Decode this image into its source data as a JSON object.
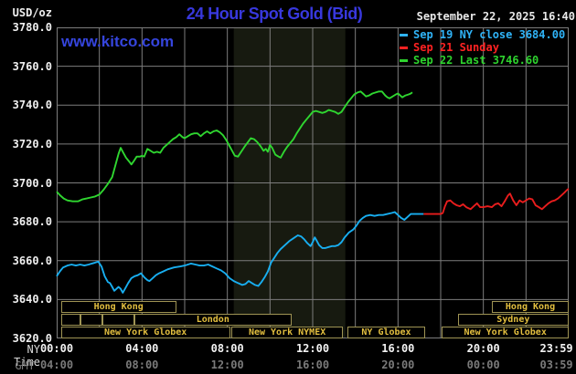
{
  "header": {
    "units": "USD/oz",
    "title": "24 Hour Spot Gold (Bid)",
    "timestamp": "September 22, 2025 16:40",
    "watermark": "www.kitco.com"
  },
  "legend": [
    {
      "id": "sep19",
      "label": "Sep 19 NY close 3684.00",
      "color": "#2fb3f7"
    },
    {
      "id": "sep21",
      "label": "Sep 21 Sunday",
      "color": "#ff2222"
    },
    {
      "id": "sep22",
      "label": "Sep 22 Last 3746.60",
      "color": "#2ed32e"
    }
  ],
  "axis": {
    "ny_label": "NY Time",
    "gmt_label": "GMT"
  },
  "chart_data": {
    "type": "line",
    "title": "24 Hour Spot Gold (Bid)",
    "ylabel": "USD/oz",
    "ylim": [
      3620,
      3780
    ],
    "xlim_hours": [
      0,
      24
    ],
    "grid": true,
    "legend_position": "top-right",
    "y_ticks": [
      3780,
      3760,
      3740,
      3720,
      3700,
      3680,
      3660,
      3640,
      3620
    ],
    "grid_values": [
      3760,
      3740,
      3720,
      3700,
      3680,
      3660,
      3640
    ],
    "grid_hours": [
      2,
      4,
      6,
      8,
      10,
      12,
      14,
      16,
      18,
      20,
      22
    ],
    "x_ticks": [
      {
        "hour": 0,
        "ny": "00:00",
        "gmt": "04:00"
      },
      {
        "hour": 4,
        "ny": "04:00",
        "gmt": "08:00"
      },
      {
        "hour": 8,
        "ny": "08:00",
        "gmt": "12:00"
      },
      {
        "hour": 12,
        "ny": "12:00",
        "gmt": "16:00"
      },
      {
        "hour": 16,
        "ny": "16:00",
        "gmt": "20:00"
      },
      {
        "hour": 20,
        "ny": "20:00",
        "gmt": "00:00"
      },
      {
        "hour": 23.983,
        "ny": "23:59",
        "gmt": "03:59"
      }
    ],
    "colors": {
      "grid": "#7d7d7d",
      "band": "#171a10",
      "session_border": "#9f9454",
      "session_text": "#e3bf3f"
    },
    "nymex_shaded_band_hours": [
      8.3,
      13.53
    ],
    "close_value": 3684.0,
    "last_value": 3746.6,
    "series": [
      {
        "id": "sep19",
        "name": "Sep 19 NY close 3684.00",
        "color": "#18aef0",
        "points": [
          [
            0.0,
            3652
          ],
          [
            0.15,
            3654.5
          ],
          [
            0.3,
            3656.5
          ],
          [
            0.5,
            3657.5
          ],
          [
            0.7,
            3658
          ],
          [
            0.9,
            3657.5
          ],
          [
            1.1,
            3658
          ],
          [
            1.3,
            3657.5
          ],
          [
            1.5,
            3658
          ],
          [
            1.65,
            3658.5
          ],
          [
            1.8,
            3659
          ],
          [
            1.95,
            3659.5
          ],
          [
            2.1,
            3657
          ],
          [
            2.25,
            3652
          ],
          [
            2.4,
            3649
          ],
          [
            2.5,
            3648.5
          ],
          [
            2.6,
            3646.5
          ],
          [
            2.7,
            3644.5
          ],
          [
            2.8,
            3645.5
          ],
          [
            2.9,
            3646.5
          ],
          [
            3.0,
            3645.5
          ],
          [
            3.1,
            3643.5
          ],
          [
            3.2,
            3645.5
          ],
          [
            3.35,
            3648.5
          ],
          [
            3.5,
            3651
          ],
          [
            3.65,
            3652
          ],
          [
            3.8,
            3652.5
          ],
          [
            3.95,
            3653.5
          ],
          [
            4.1,
            3651.5
          ],
          [
            4.25,
            3650
          ],
          [
            4.35,
            3649.5
          ],
          [
            4.5,
            3651
          ],
          [
            4.65,
            3652.5
          ],
          [
            4.8,
            3653.5
          ],
          [
            5.0,
            3654.5
          ],
          [
            5.2,
            3655.5
          ],
          [
            5.5,
            3656.5
          ],
          [
            5.8,
            3657
          ],
          [
            6.0,
            3657.5
          ],
          [
            6.3,
            3658.5
          ],
          [
            6.5,
            3658
          ],
          [
            6.7,
            3657.5
          ],
          [
            6.9,
            3657.5
          ],
          [
            7.1,
            3658
          ],
          [
            7.3,
            3657
          ],
          [
            7.5,
            3656
          ],
          [
            7.7,
            3655
          ],
          [
            7.9,
            3653.5
          ],
          [
            8.1,
            3651
          ],
          [
            8.3,
            3649.5
          ],
          [
            8.5,
            3648.5
          ],
          [
            8.7,
            3647.5
          ],
          [
            8.85,
            3648
          ],
          [
            9.0,
            3649.5
          ],
          [
            9.15,
            3648.5
          ],
          [
            9.3,
            3647.5
          ],
          [
            9.45,
            3647
          ],
          [
            9.6,
            3649
          ],
          [
            9.75,
            3651.5
          ],
          [
            9.9,
            3654.5
          ],
          [
            10.05,
            3659
          ],
          [
            10.2,
            3661.5
          ],
          [
            10.35,
            3664
          ],
          [
            10.5,
            3666
          ],
          [
            10.7,
            3668
          ],
          [
            10.9,
            3670
          ],
          [
            11.1,
            3671.5
          ],
          [
            11.3,
            3673
          ],
          [
            11.45,
            3672.5
          ],
          [
            11.6,
            3671
          ],
          [
            11.75,
            3669
          ],
          [
            11.9,
            3667.5
          ],
          [
            12.0,
            3669.5
          ],
          [
            12.1,
            3672
          ],
          [
            12.2,
            3670
          ],
          [
            12.3,
            3668
          ],
          [
            12.45,
            3666.5
          ],
          [
            12.6,
            3666.5
          ],
          [
            12.75,
            3667
          ],
          [
            12.9,
            3667.5
          ],
          [
            13.05,
            3667.5
          ],
          [
            13.2,
            3668
          ],
          [
            13.35,
            3669.5
          ],
          [
            13.5,
            3672
          ],
          [
            13.7,
            3674.5
          ],
          [
            13.9,
            3676
          ],
          [
            14.05,
            3678
          ],
          [
            14.2,
            3680.5
          ],
          [
            14.35,
            3682
          ],
          [
            14.5,
            3683
          ],
          [
            14.7,
            3683.5
          ],
          [
            14.9,
            3683
          ],
          [
            15.1,
            3683.5
          ],
          [
            15.3,
            3683.5
          ],
          [
            15.5,
            3684
          ],
          [
            15.7,
            3684.5
          ],
          [
            15.85,
            3685
          ],
          [
            16.0,
            3683.5
          ],
          [
            16.15,
            3682
          ],
          [
            16.3,
            3681
          ],
          [
            16.45,
            3682.5
          ],
          [
            16.6,
            3684
          ],
          [
            16.8,
            3684
          ],
          [
            17.0,
            3684
          ],
          [
            17.2,
            3684
          ]
        ]
      },
      {
        "id": "sep21",
        "name": "Sep 21 Sunday",
        "color": "#e81d1d",
        "points": [
          [
            17.2,
            3684
          ],
          [
            17.5,
            3684
          ],
          [
            17.8,
            3684
          ],
          [
            18.0,
            3684
          ],
          [
            18.1,
            3684.5
          ],
          [
            18.2,
            3688
          ],
          [
            18.3,
            3690.5
          ],
          [
            18.45,
            3691
          ],
          [
            18.6,
            3689.5
          ],
          [
            18.75,
            3688.5
          ],
          [
            18.9,
            3688
          ],
          [
            19.05,
            3689
          ],
          [
            19.2,
            3687.5
          ],
          [
            19.4,
            3686.5
          ],
          [
            19.55,
            3688
          ],
          [
            19.7,
            3689.5
          ],
          [
            19.85,
            3687.5
          ],
          [
            20.0,
            3687.5
          ],
          [
            20.2,
            3688
          ],
          [
            20.4,
            3687.5
          ],
          [
            20.55,
            3689
          ],
          [
            20.7,
            3689.5
          ],
          [
            20.85,
            3688
          ],
          [
            21.0,
            3690.5
          ],
          [
            21.15,
            3693.5
          ],
          [
            21.25,
            3694.5
          ],
          [
            21.4,
            3691
          ],
          [
            21.55,
            3688.5
          ],
          [
            21.7,
            3691
          ],
          [
            21.85,
            3690
          ],
          [
            22.0,
            3691
          ],
          [
            22.15,
            3692
          ],
          [
            22.3,
            3691.5
          ],
          [
            22.45,
            3688.5
          ],
          [
            22.6,
            3687.5
          ],
          [
            22.75,
            3686.5
          ],
          [
            22.9,
            3688
          ],
          [
            23.05,
            3689.5
          ],
          [
            23.2,
            3690.5
          ],
          [
            23.35,
            3691
          ],
          [
            23.5,
            3692
          ],
          [
            23.65,
            3693.5
          ],
          [
            23.8,
            3695
          ],
          [
            23.93,
            3696.5
          ],
          [
            24.0,
            3697
          ]
        ]
      },
      {
        "id": "sep22",
        "name": "Sep 22 Last 3746.60",
        "color": "#2fd630",
        "points": [
          [
            0.0,
            3695.5
          ],
          [
            0.17,
            3693.5
          ],
          [
            0.33,
            3692
          ],
          [
            0.5,
            3691
          ],
          [
            0.75,
            3690.5
          ],
          [
            1.0,
            3690.5
          ],
          [
            1.2,
            3691.5
          ],
          [
            1.4,
            3692
          ],
          [
            1.6,
            3692.5
          ],
          [
            1.8,
            3693
          ],
          [
            2.0,
            3694
          ],
          [
            2.2,
            3696.5
          ],
          [
            2.4,
            3699.5
          ],
          [
            2.6,
            3703
          ],
          [
            2.75,
            3709
          ],
          [
            2.9,
            3715
          ],
          [
            3.0,
            3718
          ],
          [
            3.1,
            3716
          ],
          [
            3.25,
            3713
          ],
          [
            3.4,
            3711
          ],
          [
            3.5,
            3709.5
          ],
          [
            3.6,
            3711
          ],
          [
            3.75,
            3713.5
          ],
          [
            3.9,
            3713.5
          ],
          [
            4.0,
            3714
          ],
          [
            4.1,
            3713.5
          ],
          [
            4.25,
            3717.5
          ],
          [
            4.4,
            3716.5
          ],
          [
            4.55,
            3715.5
          ],
          [
            4.7,
            3716
          ],
          [
            4.85,
            3715.5
          ],
          [
            5.0,
            3718
          ],
          [
            5.15,
            3719.5
          ],
          [
            5.3,
            3721
          ],
          [
            5.45,
            3722.5
          ],
          [
            5.6,
            3723.5
          ],
          [
            5.75,
            3725
          ],
          [
            5.9,
            3723.5
          ],
          [
            6.0,
            3723
          ],
          [
            6.15,
            3724
          ],
          [
            6.3,
            3725
          ],
          [
            6.45,
            3725.5
          ],
          [
            6.6,
            3725.5
          ],
          [
            6.75,
            3724
          ],
          [
            6.9,
            3725.5
          ],
          [
            7.05,
            3726.5
          ],
          [
            7.2,
            3725.5
          ],
          [
            7.35,
            3726.5
          ],
          [
            7.5,
            3727
          ],
          [
            7.65,
            3726
          ],
          [
            7.8,
            3724.5
          ],
          [
            7.95,
            3722
          ],
          [
            8.1,
            3719
          ],
          [
            8.25,
            3716
          ],
          [
            8.35,
            3714
          ],
          [
            8.5,
            3713.5
          ],
          [
            8.65,
            3716
          ],
          [
            8.8,
            3718.5
          ],
          [
            9.0,
            3721.5
          ],
          [
            9.1,
            3723
          ],
          [
            9.25,
            3722.5
          ],
          [
            9.4,
            3721
          ],
          [
            9.55,
            3719
          ],
          [
            9.7,
            3716.5
          ],
          [
            9.8,
            3717.5
          ],
          [
            9.9,
            3716
          ],
          [
            10.0,
            3719.5
          ],
          [
            10.1,
            3718
          ],
          [
            10.25,
            3714.5
          ],
          [
            10.4,
            3713.5
          ],
          [
            10.5,
            3713
          ],
          [
            10.65,
            3716
          ],
          [
            10.8,
            3718.5
          ],
          [
            10.95,
            3720.5
          ],
          [
            11.1,
            3722.5
          ],
          [
            11.25,
            3725.5
          ],
          [
            11.4,
            3728
          ],
          [
            11.55,
            3730.5
          ],
          [
            11.7,
            3732.5
          ],
          [
            11.85,
            3734.5
          ],
          [
            12.0,
            3736.5
          ],
          [
            12.15,
            3737
          ],
          [
            12.3,
            3736.5
          ],
          [
            12.45,
            3736
          ],
          [
            12.6,
            3736.5
          ],
          [
            12.75,
            3737.5
          ],
          [
            12.9,
            3737
          ],
          [
            13.05,
            3736.5
          ],
          [
            13.2,
            3735.5
          ],
          [
            13.35,
            3736.5
          ],
          [
            13.5,
            3739
          ],
          [
            13.65,
            3741.5
          ],
          [
            13.8,
            3743.5
          ],
          [
            13.95,
            3745.5
          ],
          [
            14.1,
            3746.5
          ],
          [
            14.25,
            3747
          ],
          [
            14.4,
            3745.5
          ],
          [
            14.5,
            3744.5
          ],
          [
            14.65,
            3745
          ],
          [
            14.8,
            3746
          ],
          [
            14.95,
            3746.5
          ],
          [
            15.1,
            3747
          ],
          [
            15.25,
            3747
          ],
          [
            15.4,
            3745
          ],
          [
            15.5,
            3744
          ],
          [
            15.6,
            3743.5
          ],
          [
            15.75,
            3744.5
          ],
          [
            15.9,
            3745.5
          ],
          [
            16.0,
            3746
          ],
          [
            16.1,
            3745
          ],
          [
            16.2,
            3744
          ],
          [
            16.35,
            3745
          ],
          [
            16.5,
            3745.5
          ],
          [
            16.6,
            3746
          ],
          [
            16.67,
            3746.6
          ]
        ]
      }
    ],
    "sessions": {
      "rows": [
        [
          {
            "label": "Hong Kong",
            "t0": 0.2,
            "t1": 5.6
          },
          {
            "label": "Hong Kong",
            "t0": 20.4,
            "t1": 24.0
          }
        ],
        [
          {
            "label": "",
            "t0": 0.2,
            "t1": 1.13
          },
          {
            "label": "",
            "t0": 1.13,
            "t1": 2.13
          },
          {
            "label": "",
            "t0": 2.13,
            "t1": 3.64
          },
          {
            "label": "London",
            "t0": 3.64,
            "t1": 11.0
          },
          {
            "label": "Sydney",
            "t0": 18.8,
            "t1": 24.0
          }
        ],
        [
          {
            "label": "New York Globex",
            "t0": 0.2,
            "t1": 8.13
          },
          {
            "label": "New York NYMEX",
            "t0": 8.19,
            "t1": 13.42
          },
          {
            "label": "NY Globex",
            "t0": 13.63,
            "t1": 17.27
          },
          {
            "label": "New York Globex",
            "t0": 18.06,
            "t1": 24.0
          }
        ]
      ]
    }
  }
}
